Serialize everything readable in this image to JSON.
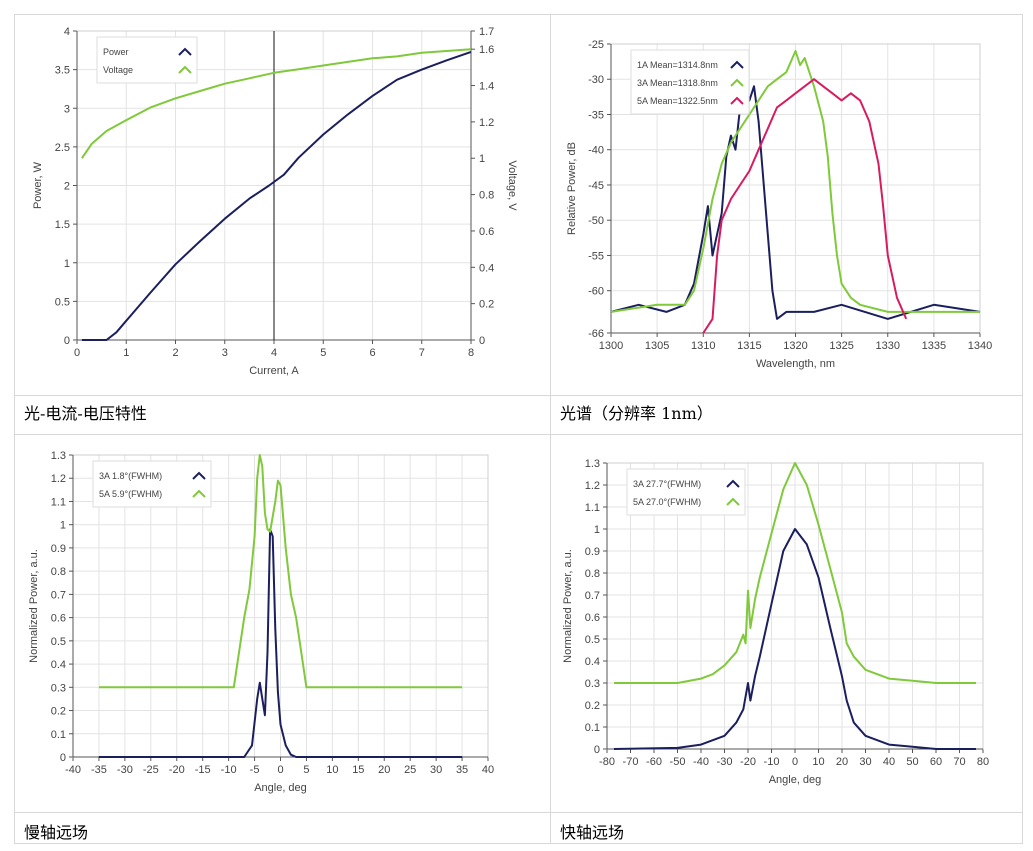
{
  "captions": [
    "光-电流-电压特性",
    "光谱（分辨率 1nm）",
    "慢轴远场",
    "快轴远场"
  ],
  "colors": {
    "navy": "#1b1f5e",
    "green": "#7fc93a",
    "pink": "#d81b60",
    "grid": "#e3e3e3",
    "axis": "#555555"
  },
  "chart_data": [
    {
      "type": "line",
      "xlabel": "Current, A",
      "ylabel": "Power, W",
      "y2label": "Voltage, V",
      "xlim": [
        0,
        8
      ],
      "ylim": [
        0,
        4
      ],
      "y2lim": [
        0,
        1.7
      ],
      "xticks": [
        0,
        1,
        2,
        3,
        4,
        5,
        6,
        7,
        8
      ],
      "yticks": [
        0,
        0.5,
        1,
        1.5,
        2,
        2.5,
        3,
        3.5,
        4
      ],
      "y2ticks": [
        0,
        0.2,
        0.4,
        0.6,
        0.8,
        1,
        1.2,
        1.4,
        1.6,
        1.7
      ],
      "cursor_x": 4,
      "series": [
        {
          "name": "Power",
          "axis": "y",
          "color": "#1b1f5e",
          "x": [
            0.1,
            0.6,
            0.8,
            1,
            1.5,
            2,
            2.5,
            3,
            3.5,
            3.9,
            4.2,
            4.5,
            5,
            5.5,
            6,
            6.5,
            7,
            7.5,
            8
          ],
          "y": [
            0,
            0,
            0.1,
            0.25,
            0.62,
            0.98,
            1.28,
            1.57,
            1.83,
            2.0,
            2.14,
            2.36,
            2.66,
            2.92,
            3.16,
            3.37,
            3.5,
            3.62,
            3.73
          ]
        },
        {
          "name": "Voltage",
          "axis": "y2",
          "color": "#7fc93a",
          "x": [
            0.1,
            0.3,
            0.6,
            1,
            1.5,
            2,
            2.5,
            3,
            3.5,
            4,
            4.5,
            5,
            5.5,
            6,
            6.5,
            7,
            7.5,
            8
          ],
          "y": [
            1.0,
            1.08,
            1.15,
            1.21,
            1.28,
            1.33,
            1.37,
            1.41,
            1.44,
            1.47,
            1.49,
            1.51,
            1.53,
            1.55,
            1.56,
            1.58,
            1.59,
            1.6
          ]
        }
      ]
    },
    {
      "type": "line",
      "xlabel": "Wavelength, nm",
      "ylabel": "Relative Power, dB",
      "xlim": [
        1300,
        1340
      ],
      "ylim": [
        -66,
        -25
      ],
      "xticks": [
        1300,
        1305,
        1310,
        1315,
        1320,
        1325,
        1330,
        1335,
        1340
      ],
      "yticks": [
        -25,
        -30,
        -35,
        -40,
        -45,
        -50,
        -55,
        -60,
        -66
      ],
      "series": [
        {
          "name": "1A Mean=1314.8nm",
          "color": "#1b1f5e",
          "x": [
            1300,
            1303,
            1306,
            1308,
            1309,
            1310,
            1310.5,
            1311,
            1312,
            1312.5,
            1313,
            1313.5,
            1314,
            1315,
            1315.5,
            1316,
            1316.5,
            1317,
            1317.5,
            1318,
            1319,
            1322,
            1325,
            1330,
            1335,
            1340
          ],
          "y": [
            -63,
            -62,
            -63,
            -62,
            -59,
            -52,
            -48,
            -55,
            -49,
            -41,
            -38,
            -40,
            -34,
            -33,
            -31,
            -36,
            -44,
            -52,
            -60,
            -64,
            -63,
            -63,
            -62,
            -64,
            -62,
            -63
          ]
        },
        {
          "name": "3A Mean=1318.8nm",
          "color": "#7fc93a",
          "x": [
            1300,
            1305,
            1308,
            1309,
            1310,
            1311,
            1312,
            1313,
            1314,
            1315,
            1316,
            1317,
            1318,
            1319,
            1320,
            1320.5,
            1321,
            1322,
            1323,
            1323.5,
            1324,
            1324.5,
            1325,
            1326,
            1327,
            1330,
            1335,
            1340
          ],
          "y": [
            -63,
            -62,
            -62,
            -60,
            -54,
            -47,
            -42,
            -39,
            -37,
            -35,
            -33,
            -31,
            -30,
            -29,
            -26,
            -28,
            -27,
            -31,
            -36,
            -41,
            -49,
            -55,
            -59,
            -61,
            -62,
            -63,
            -63,
            -63
          ]
        },
        {
          "name": "5A Mean=1322.5nm",
          "color": "#d81b60",
          "x": [
            1310,
            1311,
            1311.5,
            1312,
            1313,
            1314,
            1315,
            1316,
            1317,
            1318,
            1319,
            1320,
            1321,
            1322,
            1323,
            1324,
            1325,
            1326,
            1327,
            1328,
            1329,
            1329.5,
            1330,
            1331,
            1332
          ],
          "y": [
            -66,
            -64,
            -55,
            -50,
            -47,
            -45,
            -43,
            -40,
            -37,
            -34,
            -33,
            -32,
            -31,
            -30,
            -31,
            -32,
            -33,
            -32,
            -33,
            -36,
            -42,
            -48,
            -55,
            -61,
            -64
          ]
        }
      ]
    },
    {
      "type": "line",
      "xlabel": "Angle, deg",
      "ylabel": "Normalized Power, a.u.",
      "xlim": [
        -40,
        40
      ],
      "ylim": [
        0,
        1.3
      ],
      "xticks": [
        -40,
        -35,
        -30,
        -25,
        -20,
        -15,
        -10,
        -5,
        0,
        5,
        10,
        15,
        20,
        25,
        30,
        35,
        40
      ],
      "yticks": [
        0,
        0.1,
        0.2,
        0.3,
        0.4,
        0.5,
        0.6,
        0.7,
        0.8,
        0.9,
        1,
        1.1,
        1.2,
        1.3
      ],
      "series": [
        {
          "name": "3A 1.8°(FWHM)",
          "color": "#1b1f5e",
          "x": [
            -35,
            -7,
            -5.5,
            -4.5,
            -4,
            -3.5,
            -3,
            -2.5,
            -2,
            -1.5,
            -1,
            -0.5,
            0,
            1,
            2,
            3,
            35
          ],
          "y": [
            0,
            0,
            0.05,
            0.25,
            0.32,
            0.25,
            0.18,
            0.45,
            0.98,
            0.95,
            0.55,
            0.28,
            0.14,
            0.05,
            0.01,
            0,
            0
          ]
        },
        {
          "name": "5A 5.9°(FWHM)",
          "color": "#7fc93a",
          "x": [
            -35,
            -9,
            -8,
            -7,
            -6,
            -5,
            -4.5,
            -4,
            -3.5,
            -3,
            -2.5,
            -2,
            -1,
            -0.5,
            0,
            1,
            2,
            3,
            4,
            5,
            35
          ],
          "y": [
            0.3,
            0.3,
            0.45,
            0.6,
            0.72,
            0.95,
            1.2,
            1.3,
            1.25,
            1.05,
            0.98,
            0.97,
            1.1,
            1.19,
            1.17,
            0.9,
            0.7,
            0.6,
            0.45,
            0.3,
            0.3
          ]
        }
      ]
    },
    {
      "type": "line",
      "xlabel": "Angle, deg",
      "ylabel": "Normalized Power, a.u.",
      "xlim": [
        -80,
        80
      ],
      "ylim": [
        0,
        1.3
      ],
      "xticks": [
        -80,
        -70,
        -60,
        -50,
        -40,
        -30,
        -20,
        -10,
        0,
        10,
        20,
        30,
        40,
        50,
        60,
        70,
        80
      ],
      "yticks": [
        0,
        0.1,
        0.2,
        0.3,
        0.4,
        0.5,
        0.6,
        0.7,
        0.8,
        0.9,
        1,
        1.1,
        1.2,
        1.3
      ],
      "series": [
        {
          "name": "3A 27.7°(FWHM)",
          "color": "#1b1f5e",
          "x": [
            -77,
            -50,
            -40,
            -30,
            -25,
            -22,
            -20,
            -19,
            -17,
            -15,
            -10,
            -5,
            0,
            5,
            10,
            15,
            20,
            22,
            25,
            30,
            40,
            50,
            60,
            77
          ],
          "y": [
            0,
            0.005,
            0.02,
            0.06,
            0.12,
            0.18,
            0.3,
            0.22,
            0.33,
            0.42,
            0.66,
            0.9,
            1.0,
            0.93,
            0.78,
            0.55,
            0.33,
            0.22,
            0.12,
            0.06,
            0.02,
            0.01,
            0.0,
            0.0
          ]
        },
        {
          "name": "5A 27.0°(FWHM)",
          "color": "#7fc93a",
          "x": [
            -77,
            -50,
            -40,
            -35,
            -30,
            -25,
            -22,
            -21,
            -20,
            -19,
            -17,
            -15,
            -10,
            -5,
            0,
            5,
            10,
            15,
            20,
            22,
            25,
            30,
            40,
            50,
            60,
            77
          ],
          "y": [
            0.3,
            0.3,
            0.32,
            0.34,
            0.38,
            0.44,
            0.52,
            0.48,
            0.72,
            0.55,
            0.68,
            0.78,
            0.98,
            1.18,
            1.3,
            1.2,
            1.02,
            0.82,
            0.62,
            0.48,
            0.42,
            0.36,
            0.32,
            0.31,
            0.3,
            0.3
          ]
        }
      ]
    }
  ]
}
